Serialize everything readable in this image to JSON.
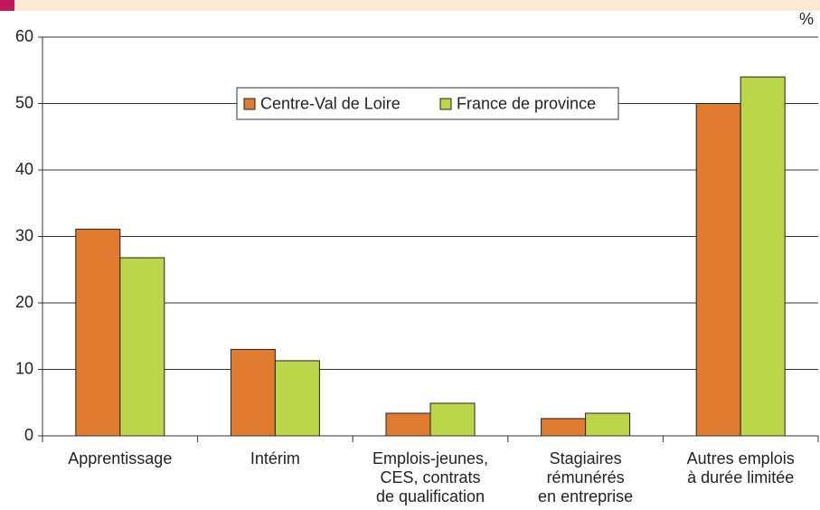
{
  "chart_data": {
    "type": "bar",
    "y_label": "%",
    "categories": [
      [
        "Apprentissage"
      ],
      [
        "Intérim"
      ],
      [
        "Emplois-jeunes,",
        "CES, contrats",
        "de qualification"
      ],
      [
        "Stagiaires",
        "rémunérés",
        "en entreprise"
      ],
      [
        "Autres emplois",
        "à durée limitée"
      ]
    ],
    "series": [
      {
        "name": "Centre-Val de Loire",
        "color": "#e07b30",
        "values": [
          31.1,
          13,
          3.4,
          2.6,
          50
        ]
      },
      {
        "name": "France de province",
        "color": "#bcd64a",
        "values": [
          26.8,
          11.3,
          4.9,
          3.4,
          54
        ]
      }
    ],
    "ylim": [
      0,
      60
    ],
    "yticks": [
      0,
      10,
      20,
      30,
      40,
      50,
      60
    ],
    "grid": true,
    "legend": "top"
  }
}
